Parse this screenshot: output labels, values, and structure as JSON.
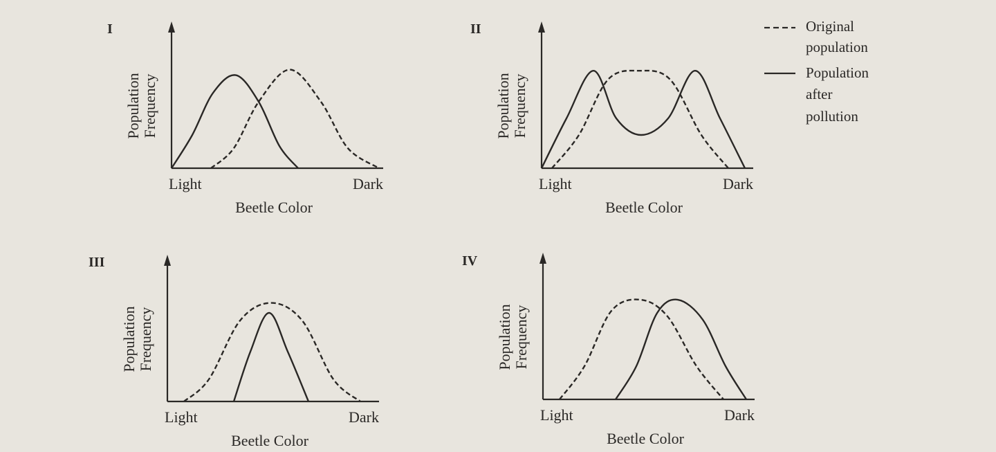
{
  "legend": {
    "original": {
      "line1": "Original",
      "line2": "population",
      "style": "dashed"
    },
    "after": {
      "line1": "Population",
      "line2": "after",
      "line3": "pollution",
      "style": "solid"
    }
  },
  "ink_color": "#2a2826",
  "background_color": "#e8e5de",
  "chart_data": [
    {
      "type": "line",
      "panel": "I",
      "ylabel": [
        "Population",
        "Frequency"
      ],
      "xlabel": "Beetle Color",
      "x_tick_labels": {
        "start": "Light",
        "end": "Dark"
      },
      "xlim": [
        0,
        1
      ],
      "ylim": [
        0,
        1
      ],
      "grid": false,
      "series": [
        {
          "name": "Original population",
          "style": "dashed",
          "points": [
            [
              0.19,
              0
            ],
            [
              0.3,
              0.18
            ],
            [
              0.42,
              0.6
            ],
            [
              0.57,
              0.89
            ],
            [
              0.72,
              0.6
            ],
            [
              0.85,
              0.18
            ],
            [
              1.0,
              0
            ]
          ]
        },
        {
          "name": "Population after pollution",
          "style": "solid",
          "points": [
            [
              0,
              0
            ],
            [
              0.1,
              0.3
            ],
            [
              0.2,
              0.68
            ],
            [
              0.31,
              0.84
            ],
            [
              0.42,
              0.6
            ],
            [
              0.52,
              0.2
            ],
            [
              0.61,
              0
            ]
          ]
        }
      ]
    },
    {
      "type": "line",
      "panel": "II",
      "ylabel": [
        "Population",
        "Frequency"
      ],
      "xlabel": "Beetle Color",
      "x_tick_labels": {
        "start": "Light",
        "end": "Dark"
      },
      "xlim": [
        0,
        1
      ],
      "ylim": [
        0,
        1
      ],
      "grid": false,
      "series": [
        {
          "name": "Original population",
          "style": "dashed",
          "points": [
            [
              0.05,
              0
            ],
            [
              0.18,
              0.3
            ],
            [
              0.32,
              0.8
            ],
            [
              0.47,
              0.88
            ],
            [
              0.62,
              0.8
            ],
            [
              0.77,
              0.3
            ],
            [
              0.9,
              0
            ]
          ]
        },
        {
          "name": "Population after pollution",
          "style": "solid",
          "points": [
            [
              0,
              0
            ],
            [
              0.12,
              0.45
            ],
            [
              0.25,
              0.88
            ],
            [
              0.36,
              0.45
            ],
            [
              0.48,
              0.3
            ],
            [
              0.61,
              0.45
            ],
            [
              0.74,
              0.88
            ],
            [
              0.86,
              0.45
            ],
            [
              0.98,
              0
            ]
          ]
        }
      ]
    },
    {
      "type": "line",
      "panel": "III",
      "ylabel": [
        "Population",
        "Frequency"
      ],
      "xlabel": "Beetle Color",
      "x_tick_labels": {
        "start": "Light",
        "end": "Dark"
      },
      "xlim": [
        0,
        1
      ],
      "ylim": [
        0,
        1
      ],
      "grid": false,
      "series": [
        {
          "name": "Original population",
          "style": "dashed",
          "points": [
            [
              0.08,
              0
            ],
            [
              0.2,
              0.2
            ],
            [
              0.35,
              0.73
            ],
            [
              0.5,
              0.89
            ],
            [
              0.65,
              0.73
            ],
            [
              0.8,
              0.2
            ],
            [
              0.93,
              0
            ]
          ]
        },
        {
          "name": "Population after pollution",
          "style": "solid",
          "points": [
            [
              0.32,
              0
            ],
            [
              0.4,
              0.45
            ],
            [
              0.49,
              0.8
            ],
            [
              0.58,
              0.45
            ],
            [
              0.68,
              0
            ]
          ]
        }
      ]
    },
    {
      "type": "line",
      "panel": "IV",
      "ylabel": [
        "Population",
        "Frequency"
      ],
      "xlabel": "Beetle Color",
      "x_tick_labels": {
        "start": "Light",
        "end": "Dark"
      },
      "xlim": [
        0,
        1
      ],
      "ylim": [
        0,
        1
      ],
      "grid": false,
      "series": [
        {
          "name": "Original population",
          "style": "dashed",
          "points": [
            [
              0.08,
              0
            ],
            [
              0.2,
              0.3
            ],
            [
              0.33,
              0.8
            ],
            [
              0.47,
              0.9
            ],
            [
              0.6,
              0.75
            ],
            [
              0.74,
              0.3
            ],
            [
              0.87,
              0
            ]
          ]
        },
        {
          "name": "Population after pollution",
          "style": "solid",
          "points": [
            [
              0.35,
              0
            ],
            [
              0.45,
              0.3
            ],
            [
              0.55,
              0.78
            ],
            [
              0.65,
              0.9
            ],
            [
              0.77,
              0.72
            ],
            [
              0.88,
              0.3
            ],
            [
              0.98,
              0
            ]
          ]
        }
      ]
    }
  ]
}
